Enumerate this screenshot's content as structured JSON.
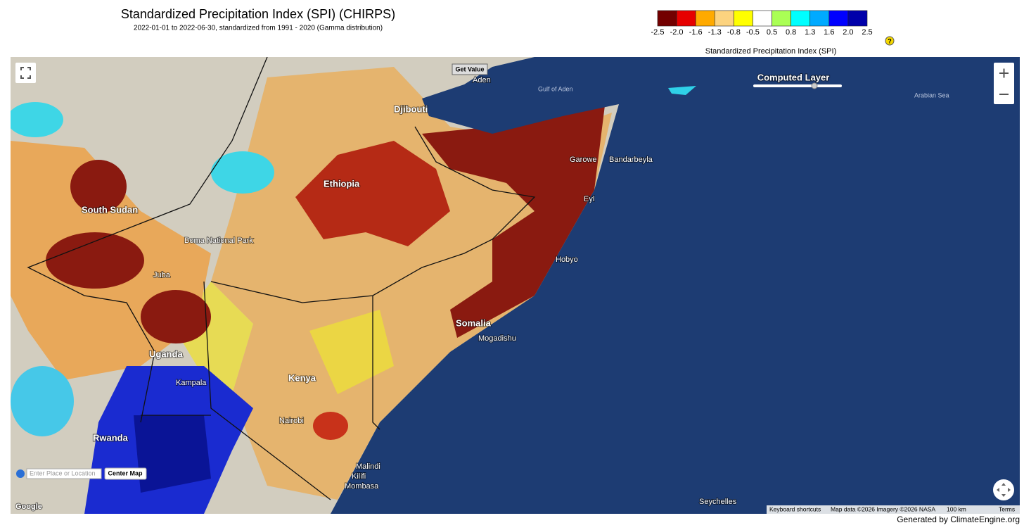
{
  "header": {
    "title": "Standardized Precipitation Index (SPI) (CHIRPS)",
    "subtitle": "2022-01-01 to 2022-06-30, standardized from 1991 - 2020 (Gamma distribution)",
    "help": "?"
  },
  "legend": {
    "title": "Standardized Precipitation Index (SPI)",
    "colors": [
      "#730000",
      "#e60000",
      "#ffaa00",
      "#fcd37f",
      "#ffff00",
      "#ffffff",
      "#aaff55",
      "#00ffff",
      "#00aaff",
      "#0000ff",
      "#0000aa"
    ],
    "ticks": [
      "-2.5",
      "-2.0",
      "-1.6",
      "-1.3",
      "-0.8",
      "-0.5",
      "0.5",
      "0.8",
      "1.3",
      "1.6",
      "2.0",
      "2.5"
    ]
  },
  "map": {
    "get_value": "Get Value",
    "layer_label": "Computed Layer",
    "search_placeholder": "Enter Place or Location",
    "center_map": "Center Map",
    "logo": "Google",
    "attribution": [
      "Keyboard shortcuts",
      "Map data ©2026 Imagery ©2026 NASA",
      "100 km",
      "Terms"
    ],
    "labels": [
      "Gulf of Aden",
      "Arabian Sea",
      "Aden",
      "Djibouti",
      "Ethiopia",
      "South Sudan",
      "Somalia",
      "Kenya",
      "Uganda",
      "Rwanda",
      "Juba",
      "Nairobi",
      "Mombasa",
      "Mogadishu",
      "Kampala",
      "Hobyo",
      "Bandarbeyla",
      "Seychelles",
      "Malindi",
      "Kilifi",
      "Garowe",
      "Boma National Park",
      "Eyl"
    ]
  },
  "footer": {
    "credit": "Generated by ClimateEngine.org"
  }
}
